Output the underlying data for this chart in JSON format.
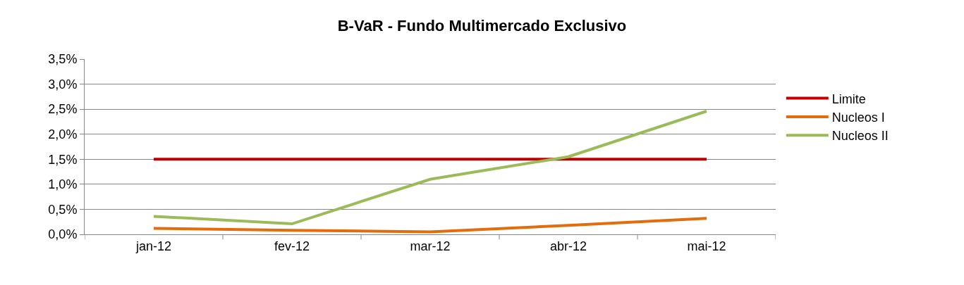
{
  "chart_data": {
    "type": "line",
    "title": "B-VaR - Fundo Multimercado Exclusivo",
    "categories": [
      "jan-12",
      "fev-12",
      "mar-12",
      "abr-12",
      "mai-12"
    ],
    "series": [
      {
        "name": "Limite",
        "color": "#c00000",
        "values": [
          1.5,
          1.5,
          1.5,
          1.5,
          1.5
        ]
      },
      {
        "name": "Nucleos I",
        "color": "#e46c0a",
        "values": [
          0.12,
          0.08,
          0.05,
          0.18,
          0.32
        ]
      },
      {
        "name": "Nucleos II",
        "color": "#9bbb59",
        "values": [
          0.36,
          0.21,
          1.1,
          1.55,
          2.46
        ]
      }
    ],
    "ylim": [
      0,
      3.5
    ],
    "yticks": [
      {
        "value": 0,
        "label": "0,0%"
      },
      {
        "value": 0.5,
        "label": "0,5%"
      },
      {
        "value": 1,
        "label": "1,0%"
      },
      {
        "value": 1.5,
        "label": "1,5%"
      },
      {
        "value": 2,
        "label": "2,0%"
      },
      {
        "value": 2.5,
        "label": "2,5%"
      },
      {
        "value": 3,
        "label": "3,0%"
      },
      {
        "value": 3.5,
        "label": "3,5%"
      }
    ],
    "grid": "y",
    "legend": "right",
    "marker": "none",
    "line_style": "solid"
  }
}
